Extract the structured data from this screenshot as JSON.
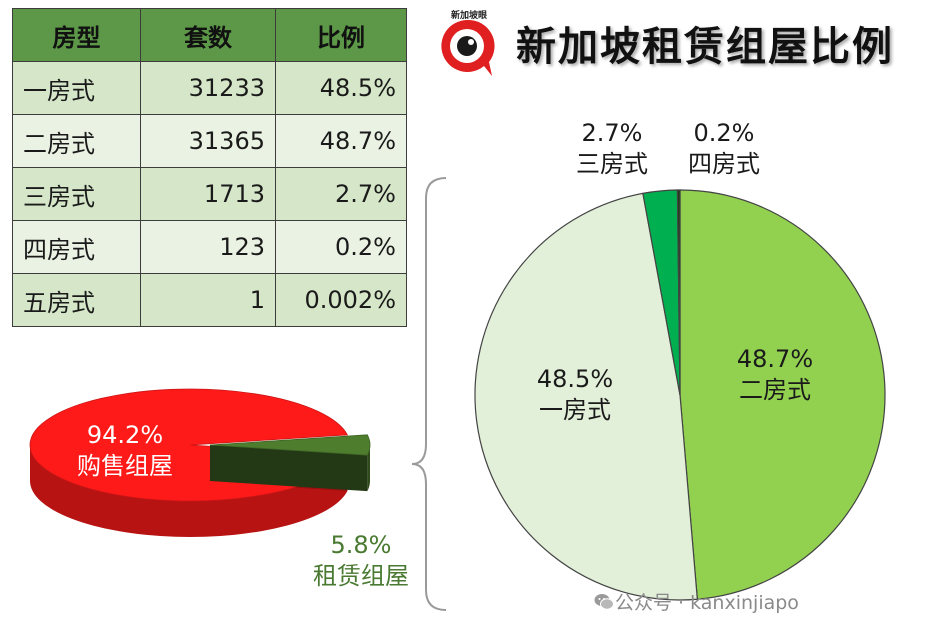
{
  "title": "新加坡租赁组屋比例",
  "logo": {
    "text": "新加坡眼",
    "icon": "red-eye-badge-icon"
  },
  "table": {
    "headers": [
      "房型",
      "套数",
      "比例"
    ],
    "rows": [
      [
        "一房式",
        "31233",
        "48.5%"
      ],
      [
        "二房式",
        "31365",
        "48.7%"
      ],
      [
        "三房式",
        "1713",
        "2.7%"
      ],
      [
        "四房式",
        "123",
        "0.2%"
      ],
      [
        "五房式",
        "1",
        "0.002%"
      ]
    ]
  },
  "watermark": {
    "text": "公众号 · kanxinjiapo",
    "icon": "wechat-icon"
  },
  "chart_data": [
    {
      "type": "pie",
      "style": "3d",
      "categories": [
        "购售组屋",
        "租赁组屋"
      ],
      "values": [
        94.2,
        5.8
      ],
      "value_labels": [
        "94.2%",
        "5.8%"
      ],
      "colors": [
        "#ff1a1a",
        "#4e7d2e"
      ],
      "exploded": [
        "租赁组屋"
      ]
    },
    {
      "type": "pie",
      "categories": [
        "二房式",
        "一房式",
        "三房式",
        "四房式"
      ],
      "values": [
        48.7,
        48.5,
        2.7,
        0.2
      ],
      "value_labels": [
        "48.7%",
        "48.5%",
        "2.7%",
        "0.2%"
      ],
      "colors": [
        "#92d050",
        "#e2efd9",
        "#00b050",
        "#1e3a10"
      ]
    }
  ]
}
